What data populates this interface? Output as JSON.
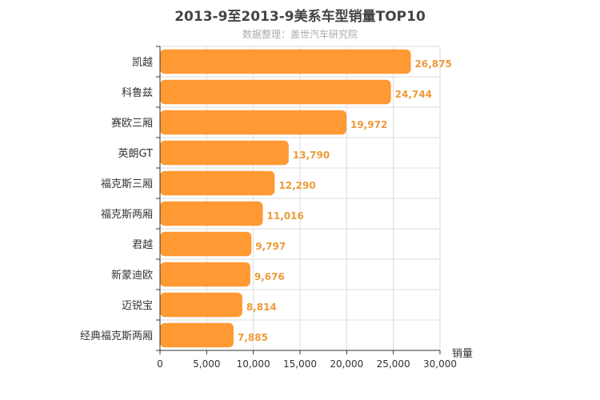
{
  "chart_data": {
    "type": "bar",
    "orientation": "horizontal",
    "title": "2013-9至2013-9美系车型销量TOP10",
    "subtitle": "数据整理：盖世汽车研究院",
    "xlabel": "销量",
    "categories": [
      "凯越",
      "科鲁兹",
      "赛欧三厢",
      "英朗GT",
      "福克斯三厢",
      "福克斯两厢",
      "君越",
      "新蒙迪欧",
      "迈锐宝",
      "经典福克斯两厢"
    ],
    "values": [
      26875,
      24744,
      19972,
      13790,
      12290,
      11016,
      9797,
      9676,
      8814,
      7885
    ],
    "value_labels": [
      "26,875",
      "24,744",
      "19,972",
      "13,790",
      "12,290",
      "11,016",
      "9,797",
      "9,676",
      "8,814",
      "7,885"
    ],
    "xlim": [
      0,
      30000
    ],
    "xticks": [
      0,
      5000,
      10000,
      15000,
      20000,
      25000,
      30000
    ],
    "xtick_labels": [
      "0",
      "5,000",
      "10,000",
      "15,000",
      "20,000",
      "25,000",
      "30,000"
    ],
    "grid": true,
    "bar_color": "#ff9933",
    "label_color": "#ee9a3a"
  }
}
